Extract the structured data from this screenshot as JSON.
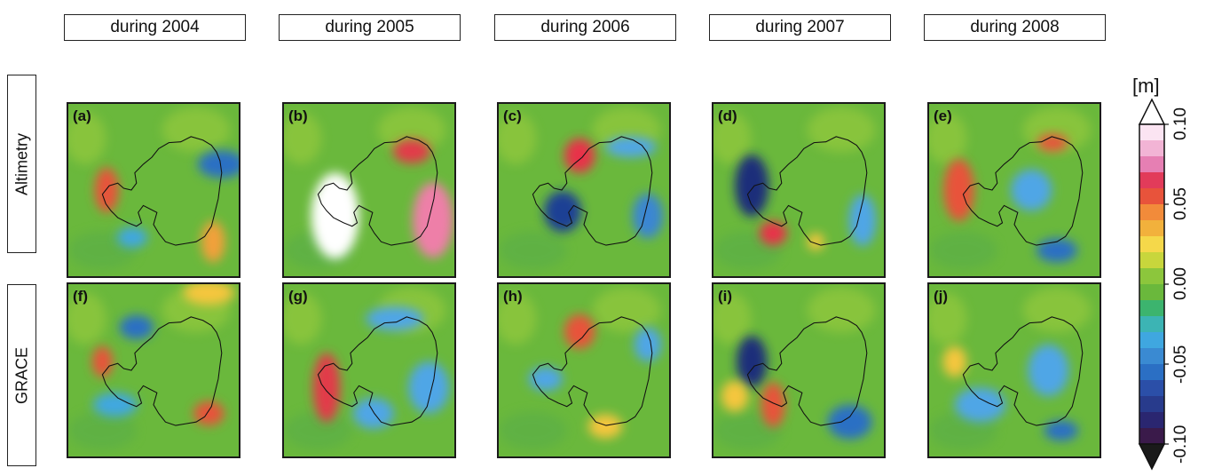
{
  "columns": [
    "during 2004",
    "during 2005",
    "during 2006",
    "during 2007",
    "during 2008"
  ],
  "rows": [
    "Altimetry",
    "GRACE"
  ],
  "panels": [
    {
      "label": "(a)",
      "blobs": [
        [
          "#2b6fc4",
          180,
          70,
          28,
          16
        ],
        [
          "#e8533b",
          45,
          100,
          14,
          26
        ],
        [
          "#3fa7e0",
          75,
          155,
          18,
          12
        ],
        [
          "#f2a03a",
          170,
          160,
          14,
          24
        ]
      ]
    },
    {
      "label": "(b)",
      "blobs": [
        [
          "#ffffff",
          60,
          130,
          28,
          50
        ],
        [
          "#e23b4a",
          150,
          55,
          22,
          14
        ],
        [
          "#ee7fa8",
          175,
          135,
          24,
          44
        ]
      ]
    },
    {
      "label": "(c)",
      "blobs": [
        [
          "#e8334a",
          95,
          60,
          18,
          20
        ],
        [
          "#1d3f94",
          75,
          125,
          22,
          24
        ],
        [
          "#3a86d2",
          175,
          130,
          18,
          26
        ],
        [
          "#4fa6e6",
          155,
          50,
          30,
          12
        ]
      ]
    },
    {
      "label": "(d)",
      "blobs": [
        [
          "#1c2f7a",
          45,
          95,
          20,
          36
        ],
        [
          "#e8334a",
          70,
          150,
          16,
          14
        ],
        [
          "#4fa6e6",
          175,
          135,
          16,
          30
        ],
        [
          "#f5c63c",
          120,
          160,
          10,
          10
        ]
      ]
    },
    {
      "label": "(e)",
      "blobs": [
        [
          "#e8533b",
          35,
          100,
          18,
          36
        ],
        [
          "#e8533b",
          145,
          45,
          18,
          10
        ],
        [
          "#2b6fc4",
          150,
          170,
          24,
          14
        ],
        [
          "#4fa6e6",
          120,
          100,
          24,
          24
        ]
      ]
    },
    {
      "label": "(f)",
      "blobs": [
        [
          "#2b6fc4",
          80,
          50,
          20,
          14
        ],
        [
          "#e8533b",
          40,
          90,
          12,
          18
        ],
        [
          "#3fa7e0",
          55,
          140,
          26,
          14
        ],
        [
          "#e8533b",
          165,
          150,
          18,
          14
        ],
        [
          "#f5c63c",
          165,
          10,
          30,
          14
        ]
      ]
    },
    {
      "label": "(g)",
      "blobs": [
        [
          "#e23b4a",
          50,
          120,
          16,
          40
        ],
        [
          "#4fa6e6",
          130,
          40,
          34,
          14
        ],
        [
          "#4fa6e6",
          105,
          150,
          24,
          18
        ],
        [
          "#4fa6e6",
          170,
          120,
          24,
          30
        ]
      ]
    },
    {
      "label": "(h)",
      "blobs": [
        [
          "#e8533b",
          95,
          55,
          18,
          20
        ],
        [
          "#4fa6e6",
          55,
          110,
          20,
          14
        ],
        [
          "#f5c63c",
          125,
          165,
          20,
          14
        ],
        [
          "#4fa6e6",
          175,
          70,
          16,
          20
        ]
      ]
    },
    {
      "label": "(i)",
      "blobs": [
        [
          "#1c2f7a",
          45,
          90,
          18,
          30
        ],
        [
          "#e8533b",
          70,
          140,
          14,
          26
        ],
        [
          "#2b6fc4",
          160,
          160,
          26,
          20
        ],
        [
          "#f5c63c",
          25,
          130,
          16,
          18
        ]
      ]
    },
    {
      "label": "(j)",
      "blobs": [
        [
          "#f5c63c",
          30,
          90,
          14,
          18
        ],
        [
          "#4fa6e6",
          60,
          140,
          30,
          20
        ],
        [
          "#2b6fc4",
          155,
          170,
          20,
          12
        ],
        [
          "#4fa6e6",
          140,
          100,
          24,
          30
        ]
      ]
    }
  ],
  "colorbar": {
    "unit": "[m]",
    "ticks": [
      "0.10",
      "0.05",
      "0.00",
      "-0.05",
      "-0.10"
    ],
    "colors": [
      "#fbe4f2",
      "#f2b4d5",
      "#e67fb3",
      "#e23b5a",
      "#e8533b",
      "#f28b3a",
      "#f2b13c",
      "#f5d84a",
      "#c8d63c",
      "#8cc63c",
      "#6ab83c",
      "#3cb46e",
      "#3cb4b4",
      "#3fa7e0",
      "#3a8ad2",
      "#2b6fc4",
      "#2b4fa8",
      "#283b8c",
      "#2a2670",
      "#3a1a4a"
    ]
  }
}
